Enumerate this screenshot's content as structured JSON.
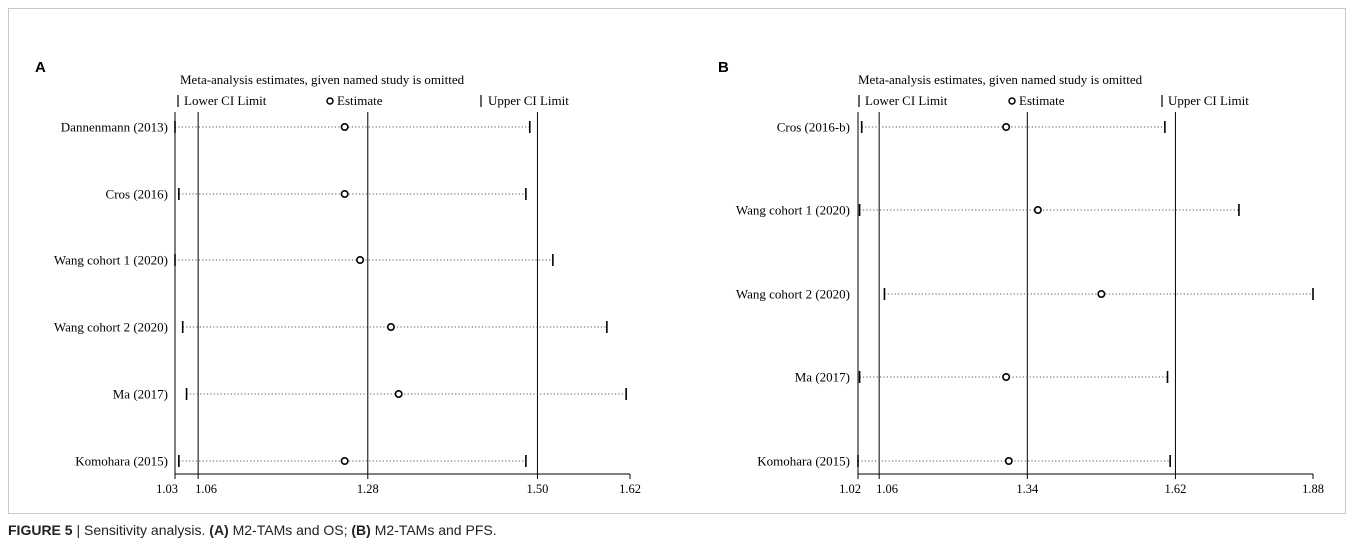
{
  "caption": {
    "figure_label": "FIGURE 5",
    "separator": " | ",
    "text_1": "Sensitivity analysis. ",
    "label_a": "(A)",
    "text_2": " M2-TAMs and OS; ",
    "label_b": "(B)",
    "text_3": " M2-TAMs and PFS."
  },
  "chart_data": [
    {
      "type": "scatter",
      "panel": "A",
      "title": "Meta-analysis estimates, given named study is omitted",
      "legend": {
        "lower": "Lower CI Limit",
        "estimate": "Estimate",
        "upper": "Upper CI Limit"
      },
      "xlim": [
        1.03,
        1.62
      ],
      "ticks": [
        1.03,
        1.06,
        1.28,
        1.5,
        1.62
      ],
      "tick_labels": [
        "1.03",
        "1.06",
        "1.28",
        "1.50",
        "1.62"
      ],
      "vlines": [
        1.03,
        1.06,
        1.28,
        1.5
      ],
      "studies": [
        {
          "name": "Dannenmann (2013)",
          "lower": 1.03,
          "estimate": 1.25,
          "upper": 1.49
        },
        {
          "name": "Cros (2016)",
          "lower": 1.035,
          "estimate": 1.25,
          "upper": 1.485
        },
        {
          "name": "Wang cohort 1 (2020)",
          "lower": 1.03,
          "estimate": 1.27,
          "upper": 1.52
        },
        {
          "name": "Wang cohort 2 (2020)",
          "lower": 1.04,
          "estimate": 1.31,
          "upper": 1.59
        },
        {
          "name": "Ma (2017)",
          "lower": 1.045,
          "estimate": 1.32,
          "upper": 1.615
        },
        {
          "name": "Komohara (2015)",
          "lower": 1.035,
          "estimate": 1.25,
          "upper": 1.485
        }
      ]
    },
    {
      "type": "scatter",
      "panel": "B",
      "title": "Meta-analysis estimates, given named study is omitted",
      "legend": {
        "lower": "Lower CI Limit",
        "estimate": "Estimate",
        "upper": "Upper CI Limit"
      },
      "xlim": [
        1.02,
        1.88
      ],
      "ticks": [
        1.02,
        1.06,
        1.34,
        1.62,
        1.88
      ],
      "tick_labels": [
        "1.02",
        "1.06",
        "1.34",
        "1.62",
        "1.88"
      ],
      "vlines": [
        1.02,
        1.06,
        1.34,
        1.62
      ],
      "studies": [
        {
          "name": "Cros (2016-b)",
          "lower": 1.027,
          "estimate": 1.3,
          "upper": 1.6
        },
        {
          "name": "Wang cohort 1 (2020)",
          "lower": 1.023,
          "estimate": 1.36,
          "upper": 1.74
        },
        {
          "name": "Wang cohort 2 (2020)",
          "lower": 1.07,
          "estimate": 1.48,
          "upper": 1.88
        },
        {
          "name": "Ma (2017)",
          "lower": 1.023,
          "estimate": 1.3,
          "upper": 1.605
        },
        {
          "name": "Komohara (2015)",
          "lower": 1.02,
          "estimate": 1.305,
          "upper": 1.61
        }
      ]
    }
  ]
}
